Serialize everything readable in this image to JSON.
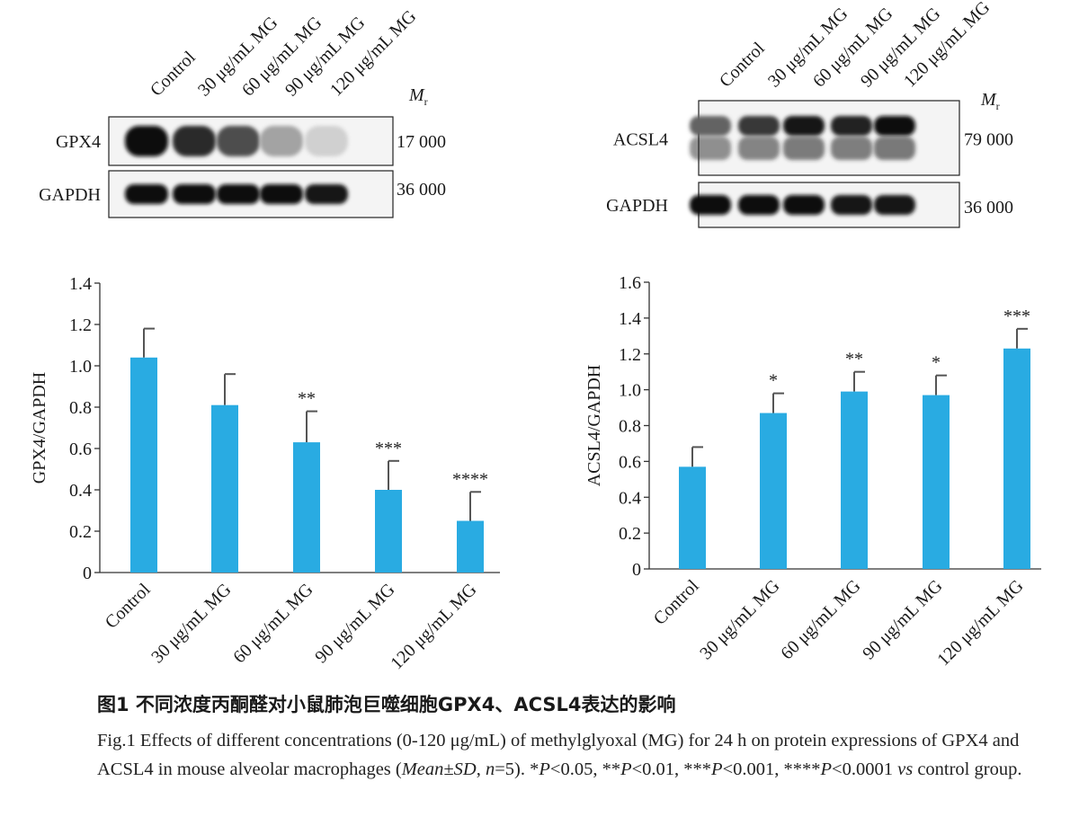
{
  "blots": [
    {
      "lanes": [
        "Control",
        "30 μg/mL MG",
        "60 μg/mL MG",
        "90 μg/mL MG",
        "120 μg/mL MG"
      ],
      "mr_symbol": "M",
      "mr_subscript": "r",
      "rows": [
        {
          "protein": "GPX4",
          "mw": "17 000",
          "band_levels": [
            1.0,
            0.85,
            0.7,
            0.32,
            0.12
          ]
        },
        {
          "protein": "GAPDH",
          "mw": "36 000",
          "band_levels": [
            1.0,
            1.0,
            1.0,
            1.0,
            0.95
          ]
        }
      ]
    },
    {
      "lanes": [
        "Control",
        "30 μg/mL MG",
        "60 μg/mL MG",
        "90 μg/mL MG",
        "120 μg/mL MG"
      ],
      "mr_symbol": "M",
      "mr_subscript": "r",
      "rows": [
        {
          "protein": "ACSL4",
          "mw": "79 000",
          "band_levels": [
            0.6,
            0.8,
            0.95,
            0.9,
            1.0
          ]
        },
        {
          "protein": "GAPDH",
          "mw": "36 000",
          "band_levels": [
            1.0,
            1.0,
            1.0,
            0.95,
            0.95
          ]
        }
      ]
    }
  ],
  "chart_data": [
    {
      "type": "bar",
      "title": "",
      "xlabel": "",
      "ylabel": "GPX4/GAPDH",
      "categories": [
        "Control",
        "30 μg/mL MG",
        "60 μg/mL MG",
        "90 μg/mL MG",
        "120 μg/mL MG"
      ],
      "values": [
        1.04,
        0.81,
        0.63,
        0.4,
        0.25
      ],
      "errors": [
        0.14,
        0.15,
        0.15,
        0.14,
        0.14
      ],
      "significance": [
        "",
        "",
        "**",
        "***",
        "****"
      ],
      "ylim": [
        0,
        1.4
      ],
      "yticks": [
        "0",
        "0.2",
        "0.4",
        "0.6",
        "0.8",
        "1.0",
        "1.2",
        "1.4"
      ],
      "grid": false,
      "bar_color": "#29abe2"
    },
    {
      "type": "bar",
      "title": "",
      "xlabel": "",
      "ylabel": "ACSL4/GAPDH",
      "categories": [
        "Control",
        "30 μg/mL MG",
        "60 μg/mL MG",
        "90 μg/mL MG",
        "120 μg/mL MG"
      ],
      "values": [
        0.57,
        0.87,
        0.99,
        0.97,
        1.23
      ],
      "errors": [
        0.11,
        0.11,
        0.11,
        0.11,
        0.11
      ],
      "significance": [
        "",
        "*",
        "**",
        "*",
        "***"
      ],
      "ylim": [
        0,
        1.6
      ],
      "yticks": [
        "0",
        "0.2",
        "0.4",
        "0.6",
        "0.8",
        "1.0",
        "1.2",
        "1.4",
        "1.6"
      ],
      "grid": false,
      "bar_color": "#29abe2"
    }
  ],
  "caption": {
    "cn": "图1 不同浓度丙酮醛对小鼠肺泡巨噬细胞GPX4、ACSL4表达的影响",
    "en_1": "Fig.1  Effects of different concentrations (0-120 μg/mL) of methylglyoxal (MG) for 24 h on protein expressions of GPX4 and ACSL4 in mouse alveolar macrophages (",
    "en_italic_1": "Mean±SD",
    "en_2": ", ",
    "en_italic_2": "n",
    "en_3": "=5). *",
    "en_italic_3": "P",
    "en_4": "<0.05, **",
    "en_italic_4": "P",
    "en_5": "<0.01, ***",
    "en_italic_5": "P",
    "en_6": "<0.001, ****",
    "en_italic_6": "P",
    "en_7": "<0.0001 ",
    "en_italic_7": "vs",
    "en_8": " control group."
  }
}
